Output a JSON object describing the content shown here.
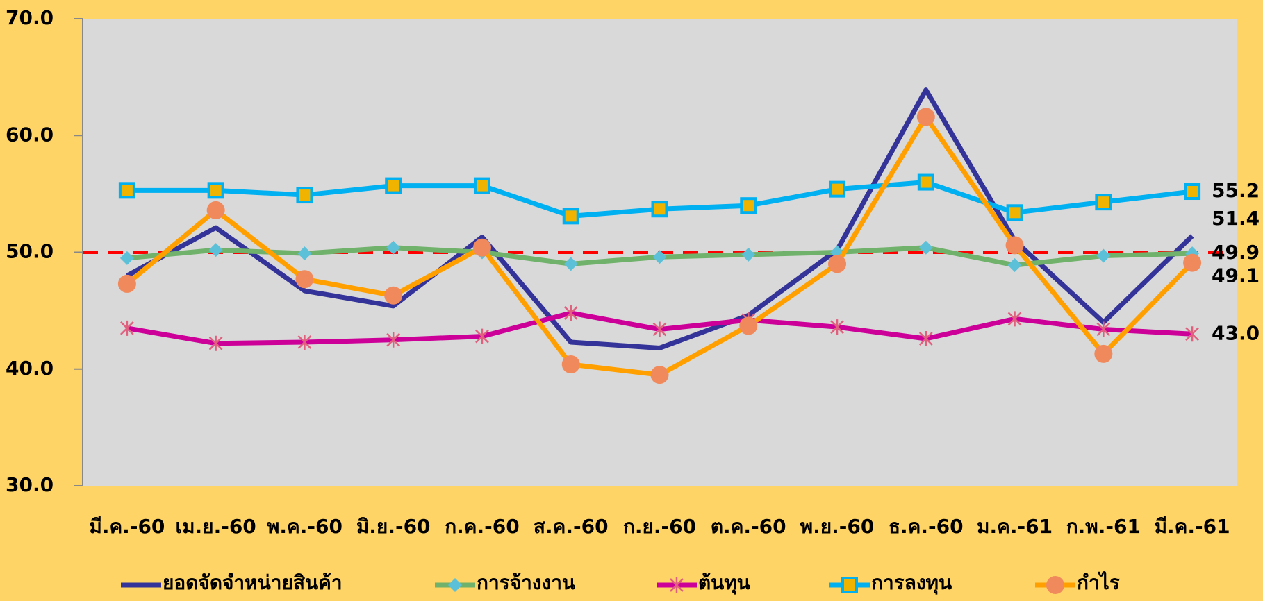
{
  "chart_data": {
    "type": "line",
    "categories": [
      "มี.ค.-60",
      "เม.ย.-60",
      "พ.ค.-60",
      "มิ.ย.-60",
      "ก.ค.-60",
      "ส.ค.-60",
      "ก.ย.-60",
      "ต.ค.-60",
      "พ.ย.-60",
      "ธ.ค.-60",
      "ม.ค.-61",
      "ก.พ.-61",
      "มี.ค.-61"
    ],
    "ylim": [
      30,
      70
    ],
    "yticks": [
      {
        "value": 30,
        "label": "30.0"
      },
      {
        "value": 40,
        "label": "40.0"
      },
      {
        "value": 50,
        "label": "50.0"
      },
      {
        "value": 60,
        "label": "60.0"
      },
      {
        "value": 70,
        "label": "70.0"
      }
    ],
    "reference_line": {
      "value": 50,
      "color": "#ff0000"
    },
    "series": [
      {
        "name": "ยอดจัดจำหน่ายสินค้า",
        "color": "#333399",
        "marker": "none",
        "marker_color": "#333399",
        "label_color": "#1f3c88",
        "values": [
          48.0,
          52.1,
          46.7,
          45.4,
          51.3,
          42.3,
          41.8,
          44.6,
          50.2,
          63.9,
          51.0,
          44.0,
          51.4
        ],
        "value_labels": [
          null,
          null,
          null,
          null,
          null,
          null,
          null,
          null,
          null,
          null,
          null,
          null,
          "51.4"
        ]
      },
      {
        "name": "การจ้างงาน",
        "color": "#70b26b",
        "marker": "diamond",
        "marker_color": "#5bc0d8",
        "label_color": "#3a6b2a",
        "values": [
          49.5,
          50.2,
          49.9,
          50.4,
          50.0,
          49.0,
          49.6,
          49.8,
          50.0,
          50.4,
          48.9,
          49.7,
          49.9
        ],
        "value_labels": [
          null,
          null,
          null,
          null,
          null,
          null,
          null,
          null,
          null,
          null,
          null,
          null,
          "49.9"
        ]
      },
      {
        "name": "ต้นทุน",
        "color": "#cc0099",
        "marker": "asterisk",
        "marker_color": "#e0607e",
        "label_color": "#c0392b",
        "values": [
          43.5,
          42.2,
          42.3,
          42.5,
          42.8,
          44.8,
          43.4,
          44.2,
          43.6,
          42.6,
          44.3,
          43.4,
          43.0
        ],
        "value_labels": [
          null,
          null,
          null,
          null,
          null,
          null,
          null,
          null,
          null,
          null,
          null,
          null,
          "43.0"
        ]
      },
      {
        "name": "การลงทุน",
        "color": "#00b0f0",
        "marker": "square",
        "marker_color": "#f0b400",
        "label_color": "#2e75b6",
        "values": [
          55.3,
          55.3,
          54.9,
          55.7,
          55.7,
          53.1,
          53.7,
          54.0,
          55.4,
          56.0,
          53.4,
          54.3,
          55.2
        ],
        "value_labels": [
          null,
          null,
          null,
          null,
          null,
          null,
          null,
          null,
          null,
          null,
          null,
          null,
          "55.2"
        ]
      },
      {
        "name": "กำไร",
        "color": "#ffa000",
        "marker": "circle",
        "marker_color": "#f08a5d",
        "label_color": "#f0a800",
        "values": [
          47.3,
          53.6,
          47.7,
          46.3,
          50.4,
          40.4,
          39.5,
          43.7,
          49.0,
          61.6,
          50.6,
          41.3,
          49.1
        ],
        "value_labels": [
          null,
          null,
          null,
          null,
          null,
          null,
          null,
          null,
          null,
          null,
          null,
          null,
          "49.1"
        ]
      }
    ]
  }
}
